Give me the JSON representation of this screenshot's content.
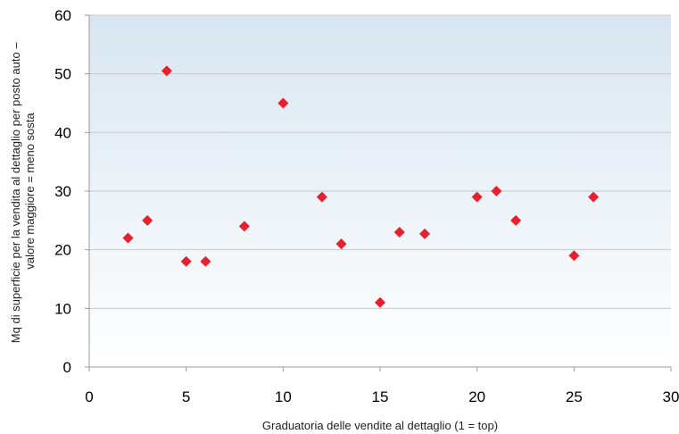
{
  "chart_data": {
    "type": "scatter",
    "xlabel": "Graduatoria delle vendite al dettaglio (1 = top)",
    "ylabel_line1": "Mq di superficie per la vendita al dettaglio per posto auto –",
    "ylabel_line2": "valore maggiore = meno sosta",
    "xlim": [
      0,
      30
    ],
    "ylim": [
      0,
      60
    ],
    "x_ticks": [
      0,
      5,
      10,
      15,
      20,
      25,
      30
    ],
    "y_ticks": [
      0,
      10,
      20,
      30,
      40,
      50,
      60
    ],
    "grid": "horizontal",
    "marker": "diamond",
    "colors": {
      "marker": "#e8202e",
      "plot_bg_top": "#d8e6f1",
      "plot_bg_bottom": "#ffffff",
      "grid": "#c8c8c8",
      "axis": "#999999"
    },
    "points": [
      {
        "x": 2,
        "y": 22
      },
      {
        "x": 3,
        "y": 25
      },
      {
        "x": 4,
        "y": 50.5
      },
      {
        "x": 5,
        "y": 18
      },
      {
        "x": 6,
        "y": 18
      },
      {
        "x": 8,
        "y": 24
      },
      {
        "x": 10,
        "y": 45
      },
      {
        "x": 12,
        "y": 29
      },
      {
        "x": 13,
        "y": 21
      },
      {
        "x": 15,
        "y": 11
      },
      {
        "x": 16,
        "y": 23
      },
      {
        "x": 17.3,
        "y": 22.7
      },
      {
        "x": 20,
        "y": 29
      },
      {
        "x": 21,
        "y": 30
      },
      {
        "x": 22,
        "y": 25
      },
      {
        "x": 25,
        "y": 19
      },
      {
        "x": 26,
        "y": 29
      }
    ]
  }
}
